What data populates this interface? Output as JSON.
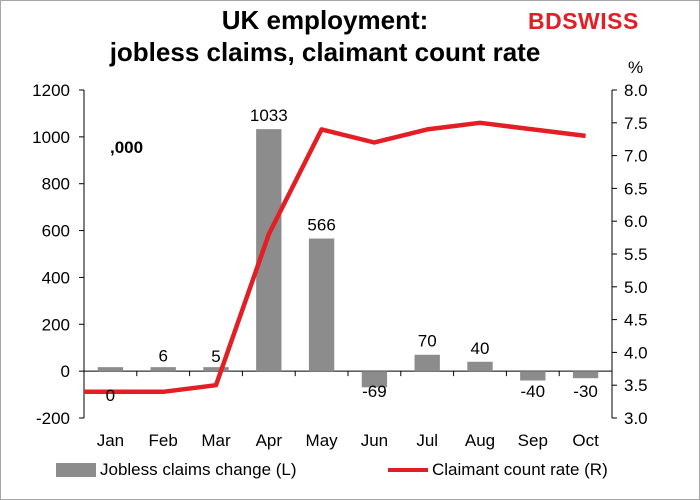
{
  "title_line1": "UK employment:",
  "title_line2": "jobless claims, claimant count rate",
  "logo": "BDSWISS",
  "unit_left": ",000",
  "unit_right": "%",
  "colors": {
    "bar": "#8c8c8c",
    "line": "#e31e24",
    "axis": "#000000"
  },
  "chart_data": {
    "type": "bar",
    "categories": [
      "Jan",
      "Feb",
      "Mar",
      "Apr",
      "May",
      "Jun",
      "Jul",
      "Aug",
      "Sep",
      "Oct"
    ],
    "series": [
      {
        "name": "Jobless claims change (L)",
        "type": "bar",
        "axis": "left",
        "values": [
          0,
          6,
          5,
          1033,
          566,
          -69,
          70,
          40,
          -40,
          -30
        ],
        "data_labels": [
          "0",
          "6",
          "5",
          "1033",
          "566",
          "-69",
          "70",
          "40",
          "-40",
          "-30"
        ]
      },
      {
        "name": "Claimant count rate (R)",
        "type": "line",
        "axis": "right",
        "values": [
          3.4,
          3.4,
          3.5,
          5.8,
          7.4,
          7.2,
          7.4,
          7.5,
          7.4,
          7.3
        ]
      }
    ],
    "y_left": {
      "min": -200,
      "max": 1200,
      "ticks": [
        "-200",
        "0",
        "200",
        "400",
        "600",
        "800",
        "1000",
        "1200"
      ]
    },
    "y_right": {
      "min": 3.0,
      "max": 8.0,
      "ticks": [
        "3.0",
        "3.5",
        "4.0",
        "4.5",
        "5.0",
        "5.5",
        "6.0",
        "6.5",
        "7.0",
        "7.5",
        "8.0"
      ]
    },
    "grid": false,
    "legend_position": "bottom"
  }
}
